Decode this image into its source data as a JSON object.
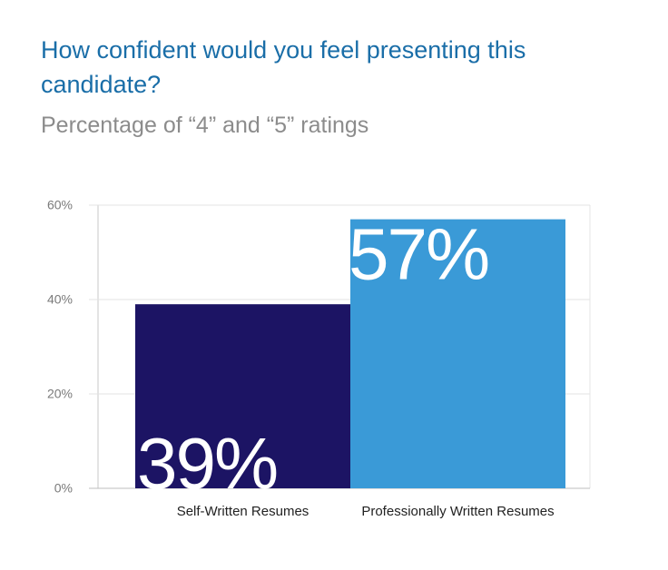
{
  "chart_data": {
    "type": "bar",
    "title": "How confident would you feel presenting this candidate?",
    "subtitle": "Percentage of “4” and “5” ratings",
    "categories": [
      "Self-Written Resumes",
      "Professionally Written Resumes"
    ],
    "values": [
      39,
      57
    ],
    "data_labels": [
      "39%",
      "57%"
    ],
    "colors": [
      "#1c1464",
      "#3a9ad7"
    ],
    "ylim": [
      0,
      60
    ],
    "yticks": [
      0,
      20,
      40,
      60
    ],
    "ytick_labels": [
      "0%",
      "20%",
      "40%",
      "60%"
    ],
    "grid": true,
    "legend": "none",
    "xlabel": "",
    "ylabel": ""
  }
}
